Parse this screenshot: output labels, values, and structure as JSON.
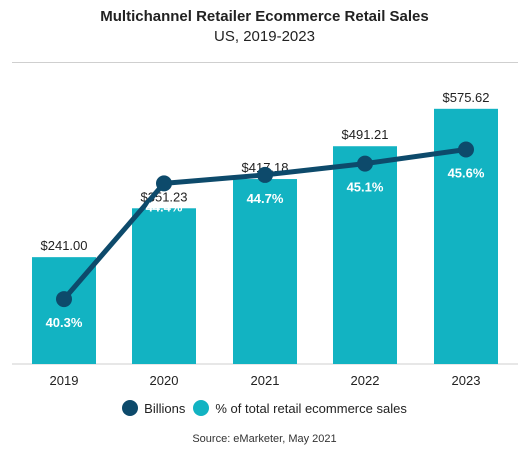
{
  "header": {
    "title": "Multichannel Retailer Ecommerce Retail Sales",
    "subtitle": "US, 2019-2023"
  },
  "legend": {
    "items": [
      {
        "label": "Billions",
        "color": "#0d4a6b"
      },
      {
        "label": "% of total retail ecommerce sales",
        "color": "#12b3c2"
      }
    ]
  },
  "source": "Source: eMarketer, May 2021",
  "colors": {
    "bar": "#12b3c2",
    "line": "#0d4a6b",
    "pct_label": "#ffffff",
    "value_label": "#222222"
  },
  "chart_data": {
    "type": "bar",
    "title": "Multichannel Retailer Ecommerce Retail Sales",
    "subtitle": "US, 2019-2023",
    "categories": [
      "2019",
      "2020",
      "2021",
      "2022",
      "2023"
    ],
    "series": [
      {
        "name": "Billions",
        "type": "bar",
        "values": [
          241.0,
          351.23,
          417.18,
          491.21,
          575.62
        ],
        "labels": [
          "$241.00",
          "$351.23",
          "$417.18",
          "$491.21",
          "$575.62"
        ]
      },
      {
        "name": "% of total retail ecommerce sales",
        "type": "line",
        "values": [
          40.3,
          44.4,
          44.7,
          45.1,
          45.6
        ],
        "labels": [
          "40.3%",
          "44.4%",
          "44.7%",
          "45.1%",
          "45.6%"
        ]
      }
    ],
    "bar_ylim": [
      0,
      600
    ],
    "line_ylim": [
      38,
      47
    ],
    "grid": false,
    "legend_position": "bottom-center"
  }
}
